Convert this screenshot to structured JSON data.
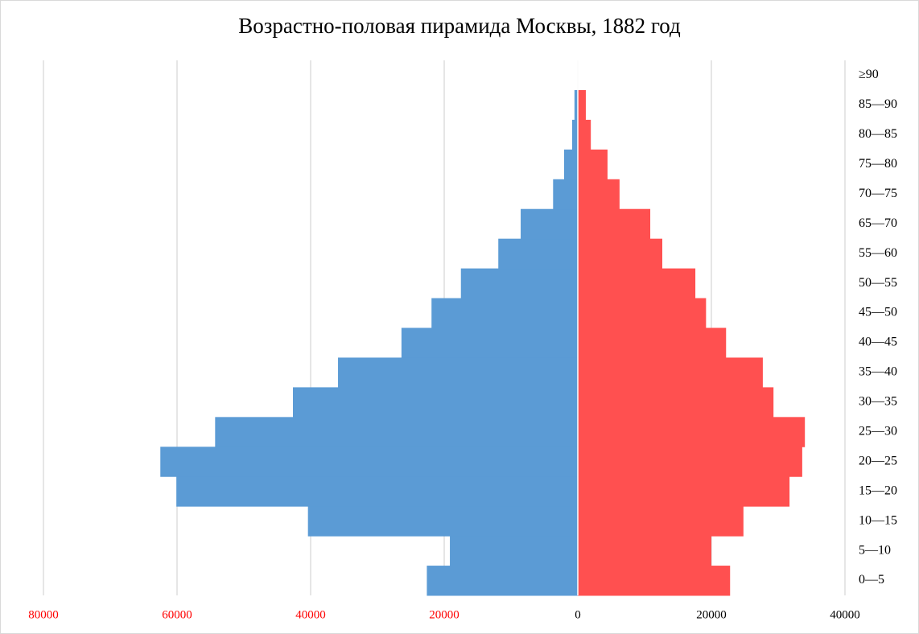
{
  "chart_data": {
    "type": "pyramid",
    "title": "Возрастно-половая пирамида Москвы, 1882 год",
    "categories": [
      "0—5",
      "5—10",
      "10—15",
      "15—20",
      "20—25",
      "25—30",
      "30—35",
      "35—40",
      "40—45",
      "45—50",
      "50—55",
      "55—60",
      "65—70",
      "70—75",
      "75—80",
      "80—85",
      "85—90",
      "≥90"
    ],
    "series": [
      {
        "color": "#5b9bd5",
        "values": [
          -22600,
          -19150,
          -40400,
          -60100,
          -62500,
          -54300,
          -42650,
          -35900,
          -26400,
          -21900,
          -17500,
          -11900,
          -8550,
          -3700,
          -2050,
          -850,
          -500,
          0
        ]
      },
      {
        "color": "#ff5050",
        "values": [
          22800,
          20000,
          24800,
          31700,
          33600,
          34000,
          29300,
          27700,
          22200,
          19200,
          17600,
          12650,
          10850,
          6250,
          4450,
          1950,
          1200,
          0
        ]
      }
    ],
    "xlim": [
      -80000,
      40000
    ],
    "xticks": [
      {
        "value": -80000,
        "label": "80000"
      },
      {
        "value": -60000,
        "label": "60000"
      },
      {
        "value": -40000,
        "label": "40000"
      },
      {
        "value": -20000,
        "label": "20000"
      },
      0,
      20000,
      40000
    ],
    "negative_tick_color": "#ff0000",
    "grid": true
  }
}
